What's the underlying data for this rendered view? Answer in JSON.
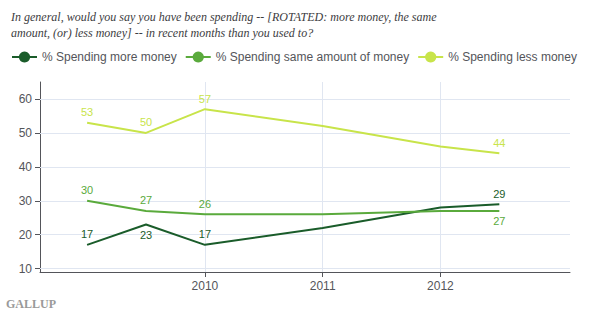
{
  "chart_data": {
    "type": "line",
    "title": "In general, would you say you have been spending -- [ROTATED: more money, the same\namount, (or) less money] -- in recent months than you used to?",
    "x": [
      2009.0,
      2009.5,
      2010.0,
      2011.0,
      2012.0,
      2012.5
    ],
    "series": [
      {
        "name": "% Spending more money",
        "color": "#1a5c2a",
        "values": [
          17,
          23,
          17,
          22,
          28,
          29
        ]
      },
      {
        "name": "% Spending same amount of money",
        "color": "#5aaa3c",
        "values": [
          30,
          27,
          26,
          26,
          27,
          27
        ]
      },
      {
        "name": "% Spending less money",
        "color": "#c8e44a",
        "values": [
          53,
          50,
          57,
          52,
          46,
          44
        ]
      }
    ],
    "annotations": [
      {
        "series": "% Spending more money",
        "x": 2009.0,
        "y": 17,
        "text": "17"
      },
      {
        "series": "% Spending more money",
        "x": 2009.5,
        "y": 23,
        "text": "23"
      },
      {
        "series": "% Spending more money",
        "x": 2010.0,
        "y": 17,
        "text": "17"
      },
      {
        "series": "% Spending more money",
        "x": 2012.5,
        "y": 29,
        "text": "29"
      },
      {
        "series": "% Spending same amount of money",
        "x": 2009.0,
        "y": 30,
        "text": "30"
      },
      {
        "series": "% Spending same amount of money",
        "x": 2009.5,
        "y": 27,
        "text": "27"
      },
      {
        "series": "% Spending same amount of money",
        "x": 2010.0,
        "y": 26,
        "text": "26"
      },
      {
        "series": "% Spending same amount of money",
        "x": 2012.5,
        "y": 27,
        "text": "27"
      },
      {
        "series": "% Spending less money",
        "x": 2009.0,
        "y": 53,
        "text": "53"
      },
      {
        "series": "% Spending less money",
        "x": 2009.5,
        "y": 50,
        "text": "50"
      },
      {
        "series": "% Spending less money",
        "x": 2010.0,
        "y": 57,
        "text": "57"
      },
      {
        "series": "% Spending less money",
        "x": 2012.5,
        "y": 44,
        "text": "44"
      }
    ],
    "xlim": [
      2008.6,
      2013.1
    ],
    "ylim": [
      9,
      65
    ],
    "xticks": [
      2010,
      2011,
      2012
    ],
    "yticks": [
      10,
      20,
      30,
      40,
      50,
      60
    ],
    "grid": true,
    "legend": "top left",
    "source": "GALLUP"
  }
}
